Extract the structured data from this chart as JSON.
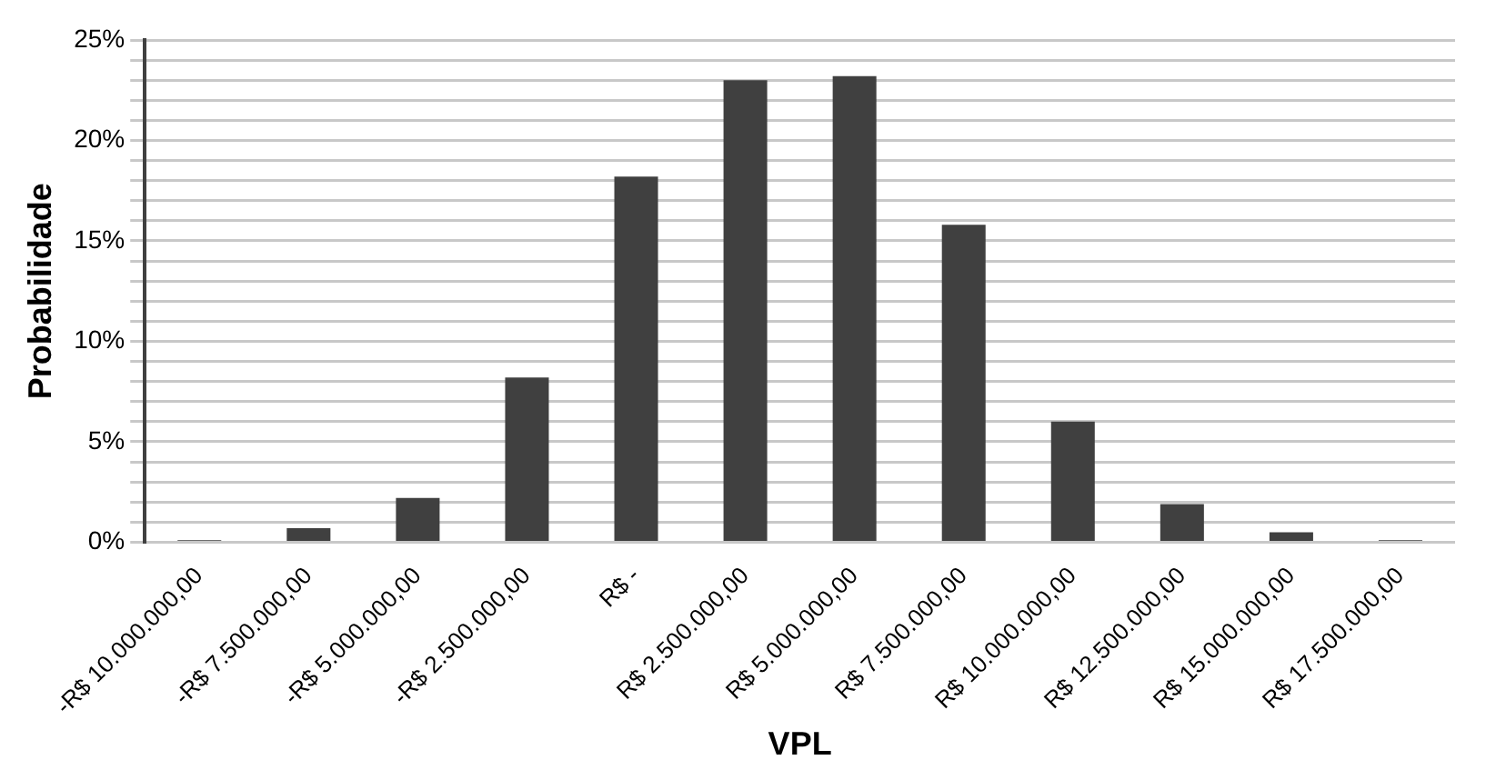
{
  "chart_data": {
    "type": "bar",
    "xlabel": "VPL",
    "ylabel": "Probabilidade",
    "categories": [
      "-R$ 10.000.000,00",
      "-R$ 7.500.000,00",
      "-R$ 5.000.000,00",
      "-R$ 2.500.000,00",
      "R$ -",
      "R$ 2.500.000,00",
      "R$ 5.000.000,00",
      "R$ 7.500.000,00",
      "R$ 10.000.000,00",
      "R$ 12.500.000,00",
      "R$ 15.000.000,00",
      "R$ 17.500.000,00"
    ],
    "values": [
      0.1,
      0.7,
      2.2,
      8.2,
      18.2,
      23.0,
      23.2,
      15.8,
      6.0,
      1.9,
      0.5,
      0.1
    ],
    "color": "#404040",
    "ylim": [
      0,
      25
    ],
    "yticks": [
      {
        "value": 0,
        "label": "0%"
      },
      {
        "value": 1,
        "label": null
      },
      {
        "value": 2,
        "label": null
      },
      {
        "value": 3,
        "label": null
      },
      {
        "value": 4,
        "label": null
      },
      {
        "value": 5,
        "label": "5%"
      },
      {
        "value": 6,
        "label": null
      },
      {
        "value": 7,
        "label": null
      },
      {
        "value": 8,
        "label": null
      },
      {
        "value": 9,
        "label": null
      },
      {
        "value": 10,
        "label": "10%"
      },
      {
        "value": 11,
        "label": null
      },
      {
        "value": 12,
        "label": null
      },
      {
        "value": 13,
        "label": null
      },
      {
        "value": 14,
        "label": null
      },
      {
        "value": 15,
        "label": "15%"
      },
      {
        "value": 16,
        "label": null
      },
      {
        "value": 17,
        "label": null
      },
      {
        "value": 18,
        "label": null
      },
      {
        "value": 19,
        "label": null
      },
      {
        "value": 20,
        "label": "20%"
      },
      {
        "value": 21,
        "label": null
      },
      {
        "value": 22,
        "label": null
      },
      {
        "value": 23,
        "label": null
      },
      {
        "value": 24,
        "label": null
      },
      {
        "value": 25,
        "label": "25%"
      }
    ],
    "grid": "y",
    "legend": false
  }
}
